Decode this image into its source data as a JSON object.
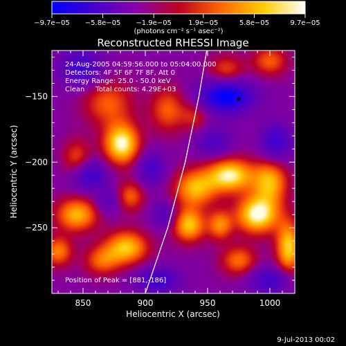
{
  "chart_data": {
    "type": "heatmap",
    "title": "Reconstructed RHESSI Image",
    "xlabel": "Heliocentric X (arcsec)",
    "ylabel": "Heliocentric Y (arcsec)",
    "xlim": [
      825,
      1020
    ],
    "ylim": [
      -300,
      -115
    ],
    "x_ticks": [
      850,
      900,
      950,
      1000
    ],
    "y_ticks": [
      -150,
      -200,
      -250
    ],
    "x_tick_labels": [
      "850",
      "900",
      "950",
      "1000"
    ],
    "y_tick_labels": [
      "−150",
      "−200",
      "−250"
    ],
    "colorbar": {
      "range": [
        -9.7e-05,
        9.7e-05
      ],
      "tick_values": [
        -9.7e-05,
        -5.8e-05,
        -1.9e-05,
        1.9e-05,
        5.8e-05,
        9.7e-05
      ],
      "tick_labels": [
        "−9.7e−05",
        "−5.8e−05",
        "−1.9e−05",
        "1.9e−05",
        "5.8e−05",
        "9.7e−05"
      ],
      "units_label": "(photons cm⁻² s⁻¹ asec⁻²)",
      "colors": [
        "#0000ff",
        "#4400cc",
        "#8800aa",
        "#bb0022",
        "#ff6600",
        "#ffcc00",
        "#ffffff"
      ]
    },
    "annotations": [
      "24-Aug-2005 04:59:56.000 to 05:04:00.000",
      "Detectors: 4F 5F 6F 7F 8F, Att 0",
      "Energy Range: 25.0 - 50.0 keV",
      "Clean     Total counts: 4.29E+03"
    ],
    "peak_label": "Position of Peak = [881,-186]",
    "peak_position": [
      881,
      -186
    ],
    "limb_curve": [
      [
        900,
        -300
      ],
      [
        918,
        -250
      ],
      [
        932,
        -200
      ],
      [
        943,
        -150
      ],
      [
        952,
        -100
      ]
    ],
    "sources": [
      {
        "x": 870,
        "y": -155,
        "amp": 0.5,
        "sx": 14,
        "sy": 12
      },
      {
        "x": 881,
        "y": -186,
        "amp": 1.0,
        "sx": 10,
        "sy": 11
      },
      {
        "x": 845,
        "y": -197,
        "amp": 0.45,
        "sx": 8,
        "sy": 10
      },
      {
        "x": 918,
        "y": -160,
        "amp": 0.5,
        "sx": 10,
        "sy": 12
      },
      {
        "x": 965,
        "y": -130,
        "amp": 0.45,
        "sx": 10,
        "sy": 8
      },
      {
        "x": 1000,
        "y": -123,
        "amp": 0.5,
        "sx": 10,
        "sy": 8
      },
      {
        "x": 940,
        "y": -165,
        "amp": 0.35,
        "sx": 8,
        "sy": 8
      },
      {
        "x": 968,
        "y": -210,
        "amp": 0.95,
        "sx": 13,
        "sy": 9
      },
      {
        "x": 940,
        "y": -220,
        "amp": 0.75,
        "sx": 12,
        "sy": 10
      },
      {
        "x": 1000,
        "y": -215,
        "amp": 0.75,
        "sx": 10,
        "sy": 12
      },
      {
        "x": 990,
        "y": -240,
        "amp": 1.0,
        "sx": 12,
        "sy": 10
      },
      {
        "x": 935,
        "y": -248,
        "amp": 0.8,
        "sx": 9,
        "sy": 9
      },
      {
        "x": 960,
        "y": -248,
        "amp": 0.6,
        "sx": 7,
        "sy": 8
      },
      {
        "x": 888,
        "y": -226,
        "amp": 0.5,
        "sx": 8,
        "sy": 8
      },
      {
        "x": 845,
        "y": -240,
        "amp": 0.75,
        "sx": 12,
        "sy": 9
      },
      {
        "x": 885,
        "y": -265,
        "amp": 0.8,
        "sx": 12,
        "sy": 9
      },
      {
        "x": 830,
        "y": -268,
        "amp": 0.6,
        "sx": 8,
        "sy": 8
      },
      {
        "x": 1015,
        "y": -265,
        "amp": 0.85,
        "sx": 7,
        "sy": 14
      },
      {
        "x": 865,
        "y": -275,
        "amp": 0.5,
        "sx": 10,
        "sy": 8
      },
      {
        "x": 975,
        "y": -275,
        "amp": 0.55,
        "sx": 10,
        "sy": 8
      },
      {
        "x": 965,
        "y": -150,
        "amp": -1.0,
        "sx": 15,
        "sy": 9
      },
      {
        "x": 848,
        "y": -128,
        "amp": -0.6,
        "sx": 12,
        "sy": 10
      },
      {
        "x": 855,
        "y": -210,
        "amp": -0.6,
        "sx": 10,
        "sy": 8
      },
      {
        "x": 905,
        "y": -205,
        "amp": -0.5,
        "sx": 8,
        "sy": 9
      },
      {
        "x": 955,
        "y": -185,
        "amp": -0.45,
        "sx": 10,
        "sy": 8
      },
      {
        "x": 1005,
        "y": -185,
        "amp": -0.6,
        "sx": 9,
        "sy": 10
      },
      {
        "x": 915,
        "y": -240,
        "amp": -0.4,
        "sx": 7,
        "sy": 7
      },
      {
        "x": 910,
        "y": -290,
        "amp": -0.6,
        "sx": 12,
        "sy": 7
      },
      {
        "x": 1000,
        "y": -290,
        "amp": -0.55,
        "sx": 12,
        "sy": 7
      },
      {
        "x": 870,
        "y": -230,
        "amp": -0.35,
        "sx": 7,
        "sy": 7
      }
    ]
  },
  "footer": {
    "date": "9-Jul-2013 00:02"
  }
}
